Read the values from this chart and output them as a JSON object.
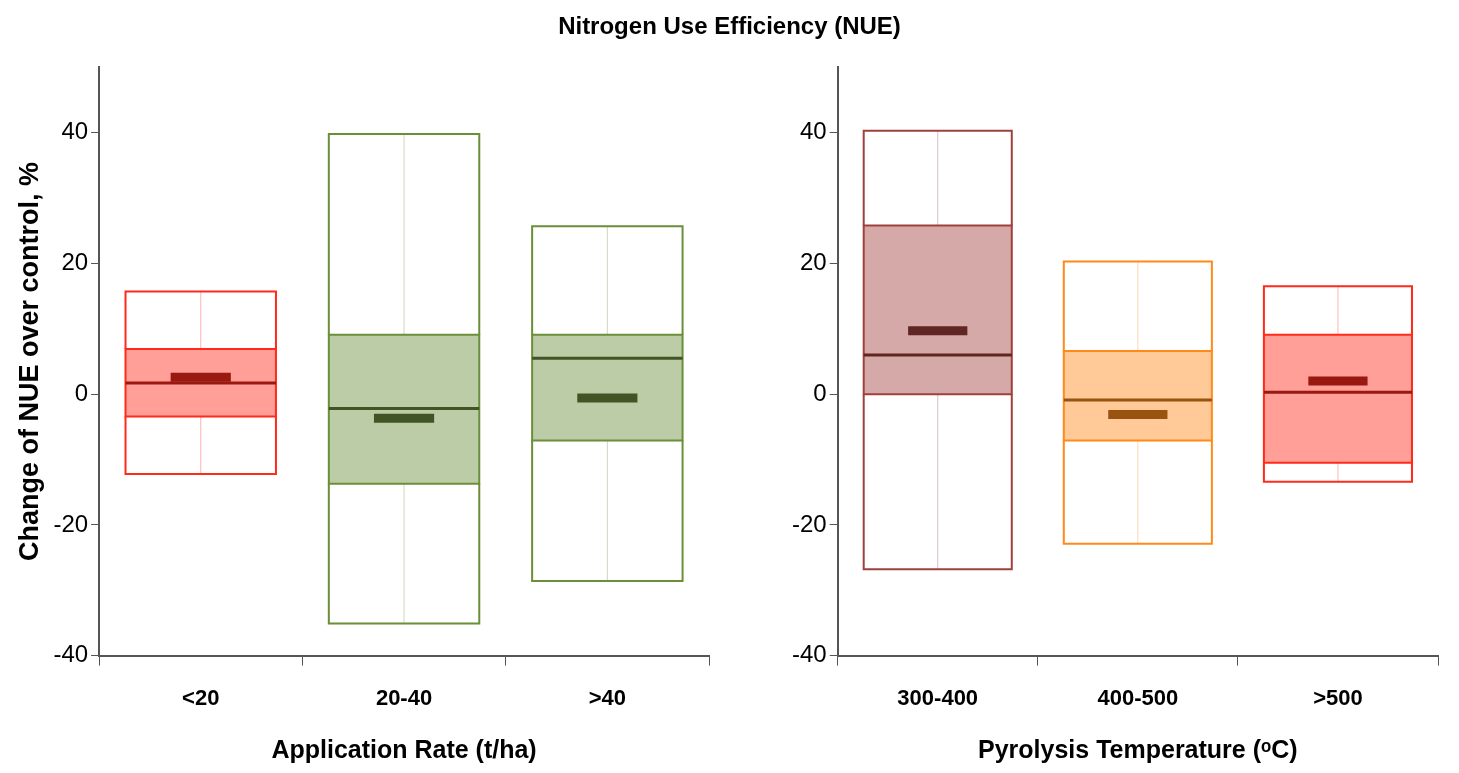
{
  "chart_data": [
    {
      "type": "box",
      "title": "Nitrogen Use Efficiency (NUE)",
      "xlabel": "Application Rate (t/ha)",
      "ylabel": "Change of NUE over control, %",
      "categories": [
        "<20",
        "20-40",
        ">40"
      ],
      "ylim": [
        -40,
        50
      ],
      "yticks": [
        -40,
        -20,
        0,
        20,
        40
      ],
      "series": [
        {
          "colors": [
            "#ff2a1a",
            "#6b8e3a",
            "#6b8e3a"
          ],
          "boxes": [
            {
              "low": -12.2,
              "q1": -3.4,
              "median": 1.7,
              "q3": 6.9,
              "high": 15.7,
              "mean": 2.6
            },
            {
              "low": -35.1,
              "q1": -13.7,
              "median": -2.2,
              "q3": 9.1,
              "high": 39.8,
              "mean": -3.7
            },
            {
              "low": -28.6,
              "q1": -7.1,
              "median": 5.5,
              "q3": 9.1,
              "high": 25.7,
              "mean": -0.6
            }
          ]
        }
      ]
    },
    {
      "type": "box",
      "xlabel": "Pyrolysis Temperature (ᵒC)",
      "categories": [
        "300-400",
        "400-500",
        ">500"
      ],
      "ylim": [
        -40,
        50
      ],
      "yticks": [
        -40,
        -20,
        0,
        20,
        40
      ],
      "series": [
        {
          "colors": [
            "#a0403c",
            "#ff8a1a",
            "#ff2a1a"
          ],
          "boxes": [
            {
              "low": -26.8,
              "q1": 0,
              "median": 6,
              "q3": 25.8,
              "high": 40.3,
              "mean": 9.7
            },
            {
              "low": -22.9,
              "q1": -7.1,
              "median": -0.9,
              "q3": 6.6,
              "high": 20.3,
              "mean": -3.1
            },
            {
              "low": -13.4,
              "q1": -10.5,
              "median": 0.3,
              "q3": 9.1,
              "high": 16.5,
              "mean": 2.0
            }
          ]
        }
      ]
    }
  ]
}
